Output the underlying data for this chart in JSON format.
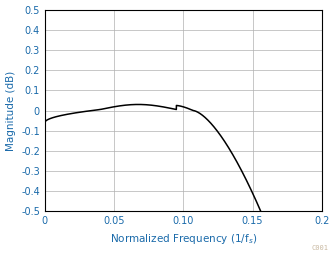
{
  "title": "",
  "xlabel": "Normalized Frequency (1/f$_s$)",
  "ylabel": "Magnitude (dB)",
  "xlim": [
    0,
    0.2
  ],
  "ylim": [
    -0.5,
    0.5
  ],
  "xticks": [
    0,
    0.05,
    0.1,
    0.15,
    0.2
  ],
  "xtick_labels": [
    "0",
    "0.05",
    "0.10",
    "0.15",
    "0.2"
  ],
  "yticks": [
    -0.5,
    -0.4,
    -0.3,
    -0.2,
    -0.1,
    0.0,
    0.1,
    0.2,
    0.3,
    0.4,
    0.5
  ],
  "ytick_labels": [
    "-0.5",
    "-0.4",
    "-0.3",
    "-0.2",
    "-0.1",
    "0",
    "0.1",
    "0.2",
    "0.3",
    "0.4",
    "0.5"
  ],
  "line_color": "#000000",
  "grid_color": "#b0b0b0",
  "background_color": "#ffffff",
  "watermark": "C001",
  "watermark_color": "#c8b8a0",
  "label_color": "#1a6aaa",
  "tick_color": "#1a6aaa"
}
